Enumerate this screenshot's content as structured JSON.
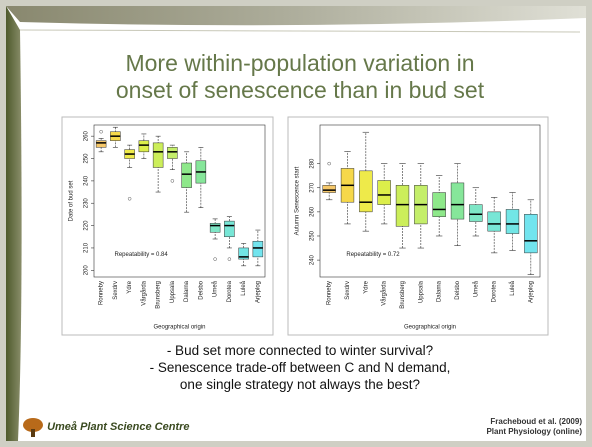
{
  "slide": {
    "title": [
      "More within-population variation in",
      "onset of senescence than in bud set"
    ],
    "bullets": [
      "- Bud set more connected to winter survival?",
      "- Senescence trade-off between C and N demand,",
      "one single strategy not always the best?"
    ],
    "logo": "Umeå Plant Science Centre",
    "citation": [
      "Fracheboud et al. (2009)",
      "Plant Physiology (online)"
    ]
  },
  "chart_data": [
    {
      "type": "boxplot",
      "y_label": "Date of bud set",
      "x_label": "Geographical origin",
      "annotation": "Repeatability = 0.84",
      "categories": [
        "Ronneby",
        "Sexdrv",
        "Ydre",
        "Vårgårda",
        "Brunsberg",
        "Uppsala",
        "Dalarna",
        "Delsbo",
        "Umeå",
        "Dorotea",
        "Luleå",
        "Arjeplog"
      ],
      "colors": [
        "#f6c86a",
        "#f6d84a",
        "#eeea4a",
        "#dcee4a",
        "#ccee5a",
        "#c4ee6a",
        "#8ee88a",
        "#86e69a",
        "#7ee6c6",
        "#78e6d6",
        "#72e6e6",
        "#72e4ee"
      ],
      "boxes": [
        {
          "min": 253,
          "q1": 255,
          "median": 257,
          "q3": 258,
          "max": 259,
          "outliers": [
            262
          ]
        },
        {
          "min": 255,
          "q1": 258,
          "median": 260,
          "q3": 262,
          "max": 264,
          "outliers": []
        },
        {
          "min": 246,
          "q1": 250,
          "median": 252,
          "q3": 254,
          "max": 256,
          "outliers": [
            232
          ]
        },
        {
          "min": 250,
          "q1": 253,
          "median": 256,
          "q3": 258,
          "max": 261,
          "outliers": []
        },
        {
          "min": 235,
          "q1": 246,
          "median": 253,
          "q3": 257,
          "max": 260,
          "outliers": []
        },
        {
          "min": 245,
          "q1": 250,
          "median": 253,
          "q3": 255,
          "max": 256,
          "outliers": [
            240
          ]
        },
        {
          "min": 226,
          "q1": 237,
          "median": 243,
          "q3": 248,
          "max": 253,
          "outliers": []
        },
        {
          "min": 228,
          "q1": 239,
          "median": 244,
          "q3": 249,
          "max": 255,
          "outliers": []
        },
        {
          "min": 214,
          "q1": 217,
          "median": 220,
          "q3": 221,
          "max": 223,
          "outliers": [
            205
          ]
        },
        {
          "min": 210,
          "q1": 215,
          "median": 220,
          "q3": 222,
          "max": 224,
          "outliers": [
            205
          ]
        },
        {
          "min": 202,
          "q1": 205,
          "median": 206,
          "q3": 210,
          "max": 212,
          "outliers": []
        },
        {
          "min": 202,
          "q1": 206,
          "median": 210,
          "q3": 213,
          "max": 218,
          "outliers": []
        }
      ],
      "ylim": [
        197,
        265
      ],
      "yticks": [
        200,
        210,
        220,
        230,
        240,
        250,
        260
      ]
    },
    {
      "type": "boxplot",
      "y_label": "Autumn Senescence start",
      "x_label": "Geographical origin",
      "annotation": "Repeatability = 0.72",
      "categories": [
        "Ronneby",
        "Sexdrv",
        "Ydre",
        "Vårgårda",
        "Brunsberg",
        "Uppsala",
        "Dalarna",
        "Delsbo",
        "Umeå",
        "Dorotea",
        "Luleå",
        "Arjeplog"
      ],
      "colors": [
        "#f6c86a",
        "#f6d84a",
        "#eeea4a",
        "#dcee4a",
        "#ccee5a",
        "#c4ee6a",
        "#8ee88a",
        "#86e69a",
        "#7ee6c6",
        "#78e6d6",
        "#72e6e6",
        "#72e4ee"
      ],
      "boxes": [
        {
          "min": 265,
          "q1": 268,
          "median": 269,
          "q3": 271,
          "max": 272,
          "outliers": [
            280
          ]
        },
        {
          "min": 255,
          "q1": 264,
          "median": 271,
          "q3": 278,
          "max": 285,
          "outliers": []
        },
        {
          "min": 252,
          "q1": 260,
          "median": 264,
          "q3": 277,
          "max": 293,
          "outliers": []
        },
        {
          "min": 255,
          "q1": 263,
          "median": 267,
          "q3": 273,
          "max": 280,
          "outliers": []
        },
        {
          "min": 245,
          "q1": 254,
          "median": 263,
          "q3": 271,
          "max": 280,
          "outliers": []
        },
        {
          "min": 245,
          "q1": 255,
          "median": 263,
          "q3": 271,
          "max": 280,
          "outliers": []
        },
        {
          "min": 250,
          "q1": 258,
          "median": 261,
          "q3": 268,
          "max": 275,
          "outliers": []
        },
        {
          "min": 246,
          "q1": 257,
          "median": 263,
          "q3": 272,
          "max": 280,
          "outliers": []
        },
        {
          "min": 250,
          "q1": 256,
          "median": 259,
          "q3": 263,
          "max": 270,
          "outliers": []
        },
        {
          "min": 243,
          "q1": 252,
          "median": 255,
          "q3": 260,
          "max": 266,
          "outliers": []
        },
        {
          "min": 244,
          "q1": 251,
          "median": 255,
          "q3": 261,
          "max": 268,
          "outliers": []
        },
        {
          "min": 234,
          "q1": 243,
          "median": 248,
          "q3": 259,
          "max": 265,
          "outliers": []
        }
      ],
      "ylim": [
        233,
        296
      ],
      "yticks": [
        240,
        250,
        260,
        270,
        280
      ]
    }
  ]
}
